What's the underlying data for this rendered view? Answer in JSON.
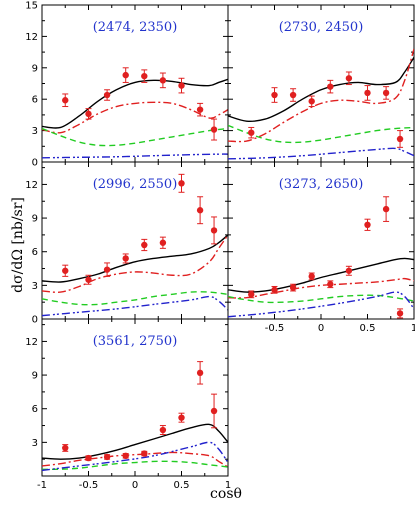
{
  "figure": {
    "ylabel": "dσ/dΩ [nb/sr]",
    "xlabel": "cosθ"
  },
  "chart_data": [
    {
      "type": "line",
      "label": "(2474, 2350)",
      "xlim": [
        -1,
        1
      ],
      "ylim": [
        0,
        15
      ],
      "yticks": [
        0,
        3,
        6,
        9,
        12,
        15
      ],
      "xticks": [],
      "data": {
        "x": [
          -0.75,
          -0.5,
          -0.3,
          -0.1,
          0.1,
          0.3,
          0.5,
          0.7,
          0.85
        ],
        "y": [
          5.9,
          4.6,
          6.4,
          8.3,
          8.2,
          7.8,
          7.3,
          5.0,
          3.1
        ],
        "err": [
          0.6,
          0.5,
          0.5,
          0.7,
          0.6,
          0.7,
          0.7,
          0.6,
          1.0
        ]
      },
      "curves": [
        {
          "style": "solid",
          "color": "#000000",
          "x": [
            -1,
            -0.8,
            -0.6,
            -0.4,
            -0.2,
            0,
            0.2,
            0.4,
            0.6,
            0.8,
            0.9,
            1
          ],
          "y": [
            3.4,
            3.3,
            4.4,
            5.8,
            6.9,
            7.6,
            7.8,
            7.7,
            7.4,
            7.3,
            7.6,
            7.9
          ]
        },
        {
          "style": "dashdot",
          "color": "#e02020",
          "x": [
            -1,
            -0.8,
            -0.6,
            -0.4,
            -0.2,
            0,
            0.2,
            0.4,
            0.6,
            0.8,
            0.9,
            1
          ],
          "y": [
            3.1,
            2.8,
            3.6,
            4.6,
            5.3,
            5.6,
            5.7,
            5.6,
            5.0,
            4.2,
            4.5,
            5.0
          ]
        },
        {
          "style": "dashed",
          "color": "#22cc22",
          "x": [
            -1,
            -0.8,
            -0.6,
            -0.4,
            -0.2,
            0,
            0.2,
            0.4,
            0.6,
            0.8,
            1
          ],
          "y": [
            3.2,
            2.5,
            1.9,
            1.6,
            1.6,
            1.8,
            2.1,
            2.4,
            2.7,
            3.0,
            3.2
          ]
        },
        {
          "style": "dashdotdot",
          "color": "#2222cc",
          "x": [
            -1,
            -0.6,
            -0.2,
            0.2,
            0.6,
            0.9,
            1
          ],
          "y": [
            0.4,
            0.45,
            0.5,
            0.6,
            0.7,
            0.75,
            0.75
          ]
        }
      ]
    },
    {
      "type": "line",
      "label": "(2730, 2450)",
      "xlim": [
        -1,
        1
      ],
      "ylim": [
        0,
        15
      ],
      "yticks": [],
      "xticks": [],
      "data": {
        "x": [
          -0.75,
          -0.5,
          -0.3,
          -0.1,
          0.1,
          0.3,
          0.5,
          0.7,
          0.85
        ],
        "y": [
          2.8,
          6.4,
          6.4,
          5.8,
          7.2,
          8.0,
          6.6,
          6.6,
          2.2
        ],
        "err": [
          0.5,
          0.7,
          0.6,
          0.5,
          0.6,
          0.6,
          0.7,
          0.6,
          0.8
        ]
      },
      "curves": [
        {
          "style": "solid",
          "color": "#000000",
          "x": [
            -1,
            -0.8,
            -0.6,
            -0.4,
            -0.2,
            0,
            0.2,
            0.4,
            0.6,
            0.8,
            0.9,
            1
          ],
          "y": [
            4.4,
            3.9,
            4.1,
            4.9,
            6.0,
            6.9,
            7.4,
            7.6,
            7.4,
            7.6,
            8.6,
            10.0
          ]
        },
        {
          "style": "dashdot",
          "color": "#e02020",
          "x": [
            -1,
            -0.8,
            -0.6,
            -0.4,
            -0.2,
            0,
            0.2,
            0.4,
            0.6,
            0.8,
            0.9,
            1
          ],
          "y": [
            2.0,
            2.0,
            2.7,
            3.8,
            4.8,
            5.6,
            5.9,
            5.8,
            5.6,
            6.1,
            7.8,
            10.8
          ]
        },
        {
          "style": "dashed",
          "color": "#22cc22",
          "x": [
            -1,
            -0.8,
            -0.6,
            -0.4,
            -0.2,
            0,
            0.2,
            0.4,
            0.6,
            0.8,
            1
          ],
          "y": [
            3.5,
            2.8,
            2.2,
            1.9,
            1.9,
            2.1,
            2.4,
            2.7,
            3.0,
            3.2,
            3.3
          ]
        },
        {
          "style": "dashdotdot",
          "color": "#2222cc",
          "x": [
            -1,
            -0.6,
            -0.2,
            0.2,
            0.6,
            0.8,
            0.9,
            1
          ],
          "y": [
            0.3,
            0.4,
            0.6,
            0.9,
            1.2,
            1.3,
            1.0,
            0.6
          ]
        }
      ]
    },
    {
      "type": "line",
      "label": "(2996, 2550)",
      "xlim": [
        -1,
        1
      ],
      "ylim": [
        0,
        14
      ],
      "yticks": [
        0,
        3,
        6,
        9,
        12
      ],
      "xticks": [],
      "data": {
        "x": [
          -0.75,
          -0.5,
          -0.3,
          -0.1,
          0.1,
          0.3,
          0.5,
          0.7,
          0.85
        ],
        "y": [
          4.3,
          3.5,
          4.4,
          5.4,
          6.6,
          6.8,
          12.1,
          9.7,
          7.9
        ],
        "err": [
          0.5,
          0.4,
          0.6,
          0.4,
          0.5,
          0.5,
          0.8,
          1.2,
          1.2
        ]
      },
      "curves": [
        {
          "style": "solid",
          "color": "#000000",
          "x": [
            -1,
            -0.8,
            -0.6,
            -0.4,
            -0.2,
            0,
            0.2,
            0.4,
            0.6,
            0.8,
            0.9,
            1
          ],
          "y": [
            3.4,
            3.3,
            3.6,
            4.0,
            4.6,
            5.1,
            5.4,
            5.6,
            5.8,
            6.3,
            6.8,
            7.5
          ]
        },
        {
          "style": "dashdot",
          "color": "#e02020",
          "x": [
            -1,
            -0.8,
            -0.6,
            -0.4,
            -0.2,
            0,
            0.2,
            0.4,
            0.6,
            0.8,
            0.9,
            1
          ],
          "y": [
            2.5,
            2.4,
            2.9,
            3.6,
            4.0,
            4.2,
            4.1,
            3.9,
            4.0,
            5.1,
            6.3,
            7.5
          ]
        },
        {
          "style": "dashed",
          "color": "#22cc22",
          "x": [
            -1,
            -0.8,
            -0.6,
            -0.4,
            -0.2,
            0,
            0.2,
            0.4,
            0.6,
            0.8,
            1
          ],
          "y": [
            1.8,
            1.5,
            1.3,
            1.3,
            1.5,
            1.7,
            2.0,
            2.2,
            2.4,
            2.4,
            2.2
          ]
        },
        {
          "style": "dashdotdot",
          "color": "#2222cc",
          "x": [
            -1,
            -0.6,
            -0.2,
            0.2,
            0.6,
            0.8,
            0.9,
            1
          ],
          "y": [
            0.3,
            0.6,
            0.9,
            1.3,
            1.7,
            2.0,
            1.6,
            0.8
          ]
        }
      ]
    },
    {
      "type": "line",
      "label": "(3273, 2650)",
      "xlim": [
        -1,
        1
      ],
      "ylim": [
        0,
        14
      ],
      "yticks": [],
      "xticks": [
        -0.5,
        0,
        0.5,
        1
      ],
      "data": {
        "x": [
          -0.75,
          -0.5,
          -0.3,
          -0.1,
          0.1,
          0.3,
          0.5,
          0.7,
          0.85
        ],
        "y": [
          2.2,
          2.6,
          2.8,
          3.8,
          3.1,
          4.3,
          8.4,
          9.8,
          0.5
        ],
        "err": [
          0.3,
          0.3,
          0.3,
          0.3,
          0.3,
          0.4,
          0.5,
          1.1,
          0.4
        ]
      },
      "curves": [
        {
          "style": "solid",
          "color": "#000000",
          "x": [
            -1,
            -0.8,
            -0.6,
            -0.4,
            -0.2,
            0,
            0.2,
            0.4,
            0.6,
            0.8,
            0.9,
            1
          ],
          "y": [
            2.6,
            2.4,
            2.5,
            2.8,
            3.2,
            3.7,
            4.1,
            4.5,
            4.9,
            5.3,
            5.4,
            5.3
          ]
        },
        {
          "style": "dashdot",
          "color": "#e02020",
          "x": [
            -1,
            -0.8,
            -0.6,
            -0.4,
            -0.2,
            0,
            0.2,
            0.4,
            0.6,
            0.8,
            0.9,
            1
          ],
          "y": [
            1.9,
            1.9,
            2.2,
            2.5,
            2.8,
            3.0,
            3.1,
            3.2,
            3.3,
            3.5,
            3.6,
            3.4
          ]
        },
        {
          "style": "dashed",
          "color": "#22cc22",
          "x": [
            -1,
            -0.8,
            -0.6,
            -0.4,
            -0.2,
            0,
            0.2,
            0.4,
            0.6,
            0.8,
            1
          ],
          "y": [
            2.0,
            1.7,
            1.5,
            1.5,
            1.6,
            1.8,
            2.0,
            2.1,
            2.1,
            1.9,
            1.6
          ]
        },
        {
          "style": "dashdotdot",
          "color": "#2222cc",
          "x": [
            -1,
            -0.6,
            -0.2,
            0.2,
            0.6,
            0.8,
            0.9,
            1
          ],
          "y": [
            0.2,
            0.5,
            0.9,
            1.4,
            2.0,
            2.4,
            2.0,
            0.9
          ]
        }
      ]
    },
    {
      "type": "line",
      "label": "(3561, 2750)",
      "xlim": [
        -1,
        1
      ],
      "ylim": [
        0,
        14
      ],
      "yticks": [
        3,
        6,
        9,
        12
      ],
      "xticks": [
        -1,
        -0.5,
        0,
        0.5,
        1
      ],
      "data": {
        "x": [
          -0.75,
          -0.5,
          -0.3,
          -0.1,
          0.1,
          0.3,
          0.5,
          0.7,
          0.85
        ],
        "y": [
          2.5,
          1.6,
          1.7,
          1.8,
          2.0,
          4.1,
          5.2,
          9.2,
          5.8
        ],
        "err": [
          0.3,
          0.2,
          0.2,
          0.2,
          0.2,
          0.4,
          0.4,
          1.0,
          1.5
        ]
      },
      "curves": [
        {
          "style": "solid",
          "color": "#000000",
          "x": [
            -1,
            -0.8,
            -0.6,
            -0.4,
            -0.2,
            0,
            0.2,
            0.4,
            0.6,
            0.8,
            0.9,
            1
          ],
          "y": [
            1.6,
            1.5,
            1.6,
            1.9,
            2.3,
            2.8,
            3.3,
            3.8,
            4.3,
            4.6,
            4.0,
            3.0
          ]
        },
        {
          "style": "dashdot",
          "color": "#e02020",
          "x": [
            -1,
            -0.8,
            -0.6,
            -0.4,
            -0.2,
            0,
            0.2,
            0.4,
            0.6,
            0.8,
            0.9,
            1
          ],
          "y": [
            0.9,
            1.1,
            1.4,
            1.6,
            1.8,
            1.9,
            2.0,
            2.1,
            2.0,
            1.8,
            1.3,
            0.8
          ]
        },
        {
          "style": "dashed",
          "color": "#22cc22",
          "x": [
            -1,
            -0.8,
            -0.6,
            -0.4,
            -0.2,
            0,
            0.2,
            0.4,
            0.6,
            0.8,
            1
          ],
          "y": [
            0.6,
            0.6,
            0.7,
            0.9,
            1.1,
            1.2,
            1.3,
            1.3,
            1.2,
            1.0,
            0.8
          ]
        },
        {
          "style": "dashdotdot",
          "color": "#2222cc",
          "x": [
            -1,
            -0.6,
            -0.2,
            0.2,
            0.6,
            0.8,
            0.9,
            1
          ],
          "y": [
            0.5,
            0.9,
            1.3,
            1.8,
            2.6,
            3.0,
            2.4,
            1.2
          ]
        }
      ]
    }
  ]
}
